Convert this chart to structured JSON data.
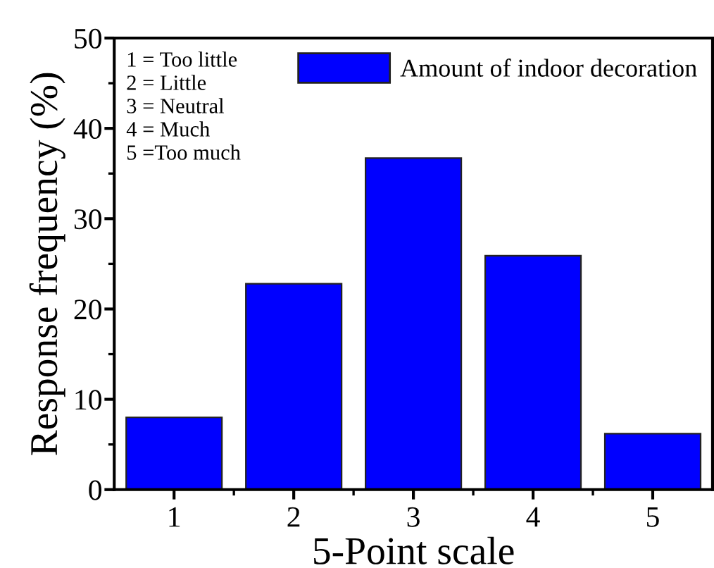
{
  "chart_data": {
    "type": "bar",
    "xlabel": "5-Point scale",
    "ylabel": "Response frequency (%)",
    "categories": [
      "1",
      "2",
      "3",
      "4",
      "5"
    ],
    "series": [
      {
        "name": "Amount of indoor decoration",
        "color": "#0000ff",
        "values": [
          8.0,
          22.8,
          36.7,
          25.9,
          6.2
        ]
      }
    ],
    "ylim": [
      0,
      50
    ],
    "yticks": [
      0,
      10,
      20,
      30,
      40,
      50
    ],
    "grid": false,
    "legend": "top right",
    "annotations": [
      "1 = Too little\n2 = Little\n3 = Neutral\n4 = Much\n5 =Too much"
    ]
  }
}
